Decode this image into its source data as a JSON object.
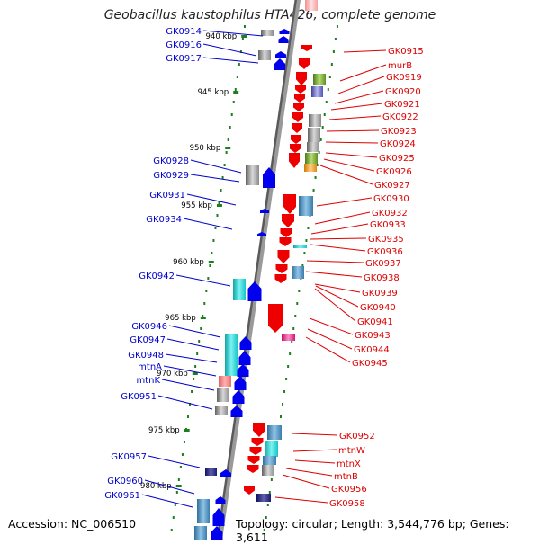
{
  "title": "Geobacillus kaustophilus HTA426, complete genome",
  "footer": {
    "accession": "Accession: NC_006510",
    "topology": "Topology: circular; Length: 3,544,776 bp; Genes: 3,611"
  },
  "colors": {
    "forward_label": "#0000cc",
    "reverse_label": "#dd0000",
    "forward_arrow": "#0000ee",
    "reverse_arrow": "#ee0000",
    "ruler_tick": "#1f7f1f",
    "backbone": "#8a8a8a"
  },
  "ruler": [
    {
      "label": "940 kbp",
      "kbp": 940
    },
    {
      "label": "945 kbp",
      "kbp": 945
    },
    {
      "label": "950 kbp",
      "kbp": 950
    },
    {
      "label": "955 kbp",
      "kbp": 955
    },
    {
      "label": "960 kbp",
      "kbp": 960
    },
    {
      "label": "965 kbp",
      "kbp": 965
    },
    {
      "label": "970 kbp",
      "kbp": 970
    },
    {
      "label": "975 kbp",
      "kbp": 975
    },
    {
      "label": "980 kbp",
      "kbp": 980
    }
  ],
  "forward_genes": [
    {
      "name": "GK0914"
    },
    {
      "name": "GK0916"
    },
    {
      "name": "GK0917"
    },
    {
      "name": "GK0928"
    },
    {
      "name": "GK0929"
    },
    {
      "name": "GK0931"
    },
    {
      "name": "GK0934"
    },
    {
      "name": "GK0942"
    },
    {
      "name": "GK0946"
    },
    {
      "name": "GK0947"
    },
    {
      "name": "GK0948"
    },
    {
      "name": "mtnA"
    },
    {
      "name": "mtnK"
    },
    {
      "name": "GK0951"
    },
    {
      "name": "GK0957"
    },
    {
      "name": "GK0960"
    },
    {
      "name": "GK0961"
    }
  ],
  "reverse_genes": [
    {
      "name": "GK0915"
    },
    {
      "name": "murB"
    },
    {
      "name": "GK0919"
    },
    {
      "name": "GK0920"
    },
    {
      "name": "GK0921"
    },
    {
      "name": "GK0922"
    },
    {
      "name": "GK0923"
    },
    {
      "name": "GK0924"
    },
    {
      "name": "GK0925"
    },
    {
      "name": "GK0926"
    },
    {
      "name": "GK0927"
    },
    {
      "name": "GK0930"
    },
    {
      "name": "GK0932"
    },
    {
      "name": "GK0933"
    },
    {
      "name": "GK0935"
    },
    {
      "name": "GK0936"
    },
    {
      "name": "GK0937"
    },
    {
      "name": "GK0938"
    },
    {
      "name": "GK0939"
    },
    {
      "name": "GK0940"
    },
    {
      "name": "GK0941"
    },
    {
      "name": "GK0943"
    },
    {
      "name": "GK0944"
    },
    {
      "name": "GK0945"
    },
    {
      "name": "GK0952"
    },
    {
      "name": "mtnW"
    },
    {
      "name": "mtnX"
    },
    {
      "name": "mtnB"
    },
    {
      "name": "GK0956"
    },
    {
      "name": "GK0958"
    }
  ]
}
